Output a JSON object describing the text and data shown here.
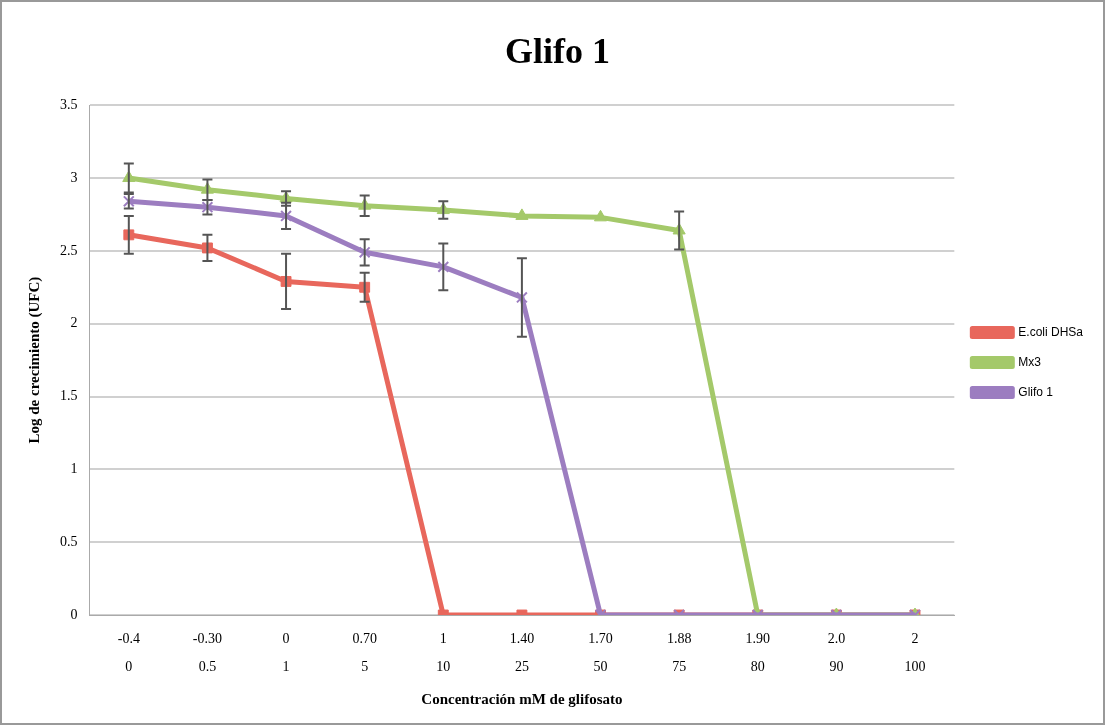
{
  "chart_data": {
    "type": "line",
    "title": "Glifo 1",
    "xlabel": "Concentración mM de glifosato",
    "ylabel": "Log de crecimiento (UFC)",
    "categories": [
      "-0.4\n0",
      "-0.30\n0.5",
      "0\n1",
      "0.70\n5",
      "1\n10",
      "1.40\n25",
      "1.70\n50",
      "1.88\n75",
      "1.90\n80",
      "2.0\n90",
      "2\n100"
    ],
    "ylim": [
      0,
      3.5
    ],
    "yticks": [
      0,
      0.5,
      1,
      1.5,
      2,
      2.5,
      3,
      3.5
    ],
    "grid": "y",
    "legend": "right",
    "series": [
      {
        "name": "E.coli DHSa",
        "color": "#e8675c",
        "marker": "square",
        "values": [
          2.61,
          2.52,
          2.29,
          2.25,
          0,
          0,
          0,
          0,
          0,
          0,
          0
        ],
        "errors": [
          0.13,
          0.09,
          0.19,
          0.1,
          null,
          null,
          null,
          null,
          null,
          null,
          null
        ]
      },
      {
        "name": "Mx3",
        "color": "#a4c96a",
        "marker": "triangle",
        "values": [
          3.0,
          2.92,
          2.86,
          2.81,
          2.78,
          2.74,
          2.73,
          2.64,
          0,
          0,
          0
        ],
        "errors": [
          0.1,
          0.07,
          0.05,
          0.07,
          0.06,
          null,
          null,
          0.13,
          null,
          null,
          null
        ]
      },
      {
        "name": "Glifo 1",
        "color": "#9c7dc0",
        "marker": "cross",
        "values": [
          2.84,
          2.8,
          2.74,
          2.49,
          2.39,
          2.18,
          0,
          0,
          0,
          0,
          0
        ],
        "errors": [
          0.05,
          0.05,
          0.09,
          0.09,
          0.16,
          0.27,
          null,
          null,
          null,
          null,
          null
        ]
      }
    ]
  }
}
